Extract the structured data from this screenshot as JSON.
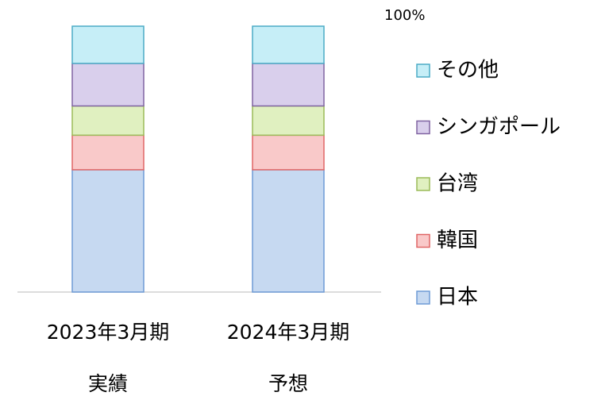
{
  "chart_data": {
    "type": "bar",
    "stacked": true,
    "categories": [
      [
        "2023年3月期",
        "実績"
      ],
      [
        "2024年3月期",
        "予想"
      ]
    ],
    "series": [
      {
        "name": "日本",
        "color": "#c6d9f1",
        "edge": "#6f9bd6",
        "values": [
          46,
          46
        ]
      },
      {
        "name": "韓国",
        "color": "#f9c9c9",
        "edge": "#e06666",
        "values": [
          13,
          13
        ]
      },
      {
        "name": "台湾",
        "color": "#e0f0c0",
        "edge": "#9bbb59",
        "values": [
          11,
          11
        ]
      },
      {
        "name": "シンガポール",
        "color": "#d9cfec",
        "edge": "#8064a2",
        "values": [
          16,
          16
        ]
      },
      {
        "name": "その他",
        "color": "#c6eef7",
        "edge": "#4bacc6",
        "values": [
          14,
          14
        ]
      }
    ],
    "ylim": [
      0,
      100
    ],
    "yticks": [
      {
        "value": 100,
        "label": "100%"
      }
    ],
    "grid": false,
    "legend": "right"
  }
}
